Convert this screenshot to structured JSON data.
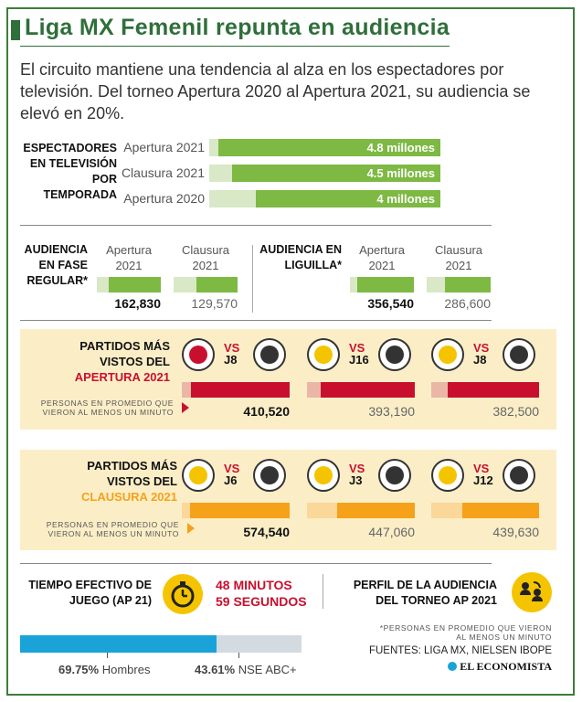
{
  "title": "Liga MX Femenil repunta en audiencia",
  "intro": "El circuito mantiene una tendencia al alza en los espectadores por televisión. Del torneo Apertura 2020 al Apertura 2021, su audiencia se elevó en 20%.",
  "colors": {
    "green": "#7db943",
    "pale_green": "#d9e8c6",
    "red": "#c8102e",
    "pink": "#eab7a7",
    "orange": "#f6a11a",
    "cream": "#fbeec7",
    "blue": "#1aa3d9",
    "gray": "#d3dbe0",
    "title_green": "#2f6f3a"
  },
  "chart_data": [
    {
      "id": "tv_viewers",
      "type": "bar",
      "title": "ESPECTADORES EN TELEVISIÓN POR TEMPORADA",
      "categories": [
        "Apertura 2021",
        "Clausura 2021",
        "Apertura 2020"
      ],
      "values": [
        4.8,
        4.5,
        4.0
      ],
      "labels": [
        "4.8 millones",
        "4.5 millones",
        "4 millones"
      ],
      "unit": "millones"
    },
    {
      "id": "regular_season",
      "type": "bar",
      "title": "AUDIENCIA EN FASE REGULAR*",
      "categories": [
        "Apertura 2021",
        "Clausura 2021"
      ],
      "values": [
        162830,
        129570
      ],
      "labels": [
        "162,830",
        "129,570"
      ]
    },
    {
      "id": "liguilla",
      "type": "bar",
      "title": "AUDIENCIA EN LIGUILLA*",
      "categories": [
        "Apertura 2021",
        "Clausura 2021"
      ],
      "values": [
        356540,
        286600
      ],
      "labels": [
        "356,540",
        "286,600"
      ]
    },
    {
      "id": "apertura_matches",
      "type": "bar",
      "title_lines": [
        "PARTIDOS MÁS",
        "VISTOS DEL",
        "APERTURA 2021"
      ],
      "note": "PERSONAS EN PROMEDIO QUE VIERON AL MENOS UN MINUTO",
      "matches": [
        {
          "vs": "VS",
          "jornada": "J8",
          "home": "chivas-logo",
          "away": "atlas-logo"
        },
        {
          "vs": "VS",
          "jornada": "J16",
          "home": "america-logo",
          "away": "tigres-logo"
        },
        {
          "vs": "VS",
          "jornada": "J8",
          "home": "america-logo",
          "away": "pumas-logo"
        }
      ],
      "values": [
        410520,
        393190,
        382500
      ],
      "labels": [
        "410,520",
        "393,190",
        "382,500"
      ]
    },
    {
      "id": "clausura_matches",
      "type": "bar",
      "title_lines": [
        "PARTIDOS MÁS",
        "VISTOS DEL",
        "CLAUSURA 2021"
      ],
      "note": "PERSONAS EN PROMEDIO QUE VIERON AL MENOS UN MINUTO",
      "matches": [
        {
          "vs": "VS",
          "jornada": "J6",
          "home": "santos-logo",
          "away": "queretaro-logo"
        },
        {
          "vs": "VS",
          "jornada": "J3",
          "home": "tijuana-logo",
          "away": "atlas-logo"
        },
        {
          "vs": "VS",
          "jornada": "J12",
          "home": "tijuana-logo",
          "away": "rayadas-logo"
        }
      ],
      "values": [
        574540,
        447060,
        439630
      ],
      "labels": [
        "574,540",
        "447,060",
        "439,630"
      ]
    },
    {
      "id": "audience_profile",
      "type": "bar",
      "title": "PERFIL DE LA AUDIENCIA DEL TORNEO AP 2021",
      "categories": [
        "Hombres",
        "NSE ABC+"
      ],
      "values": [
        69.75,
        43.61
      ],
      "labels": [
        "69.75%",
        "43.61%"
      ],
      "unit": "%"
    }
  ],
  "tiempo": {
    "label": "TIEMPO EFECTIVO DE JUEGO (AP 21)",
    "line1": "48 MINUTOS",
    "line2": "59 SEGUNDOS"
  },
  "footer": {
    "note": "*PERSONAS EN PROMEDIO QUE VIERON AL MENOS UN MINUTO",
    "sources": "FUENTES: LIGA MX, NIELSEN IBOPE",
    "brand": "EL ECONOMISTA"
  }
}
